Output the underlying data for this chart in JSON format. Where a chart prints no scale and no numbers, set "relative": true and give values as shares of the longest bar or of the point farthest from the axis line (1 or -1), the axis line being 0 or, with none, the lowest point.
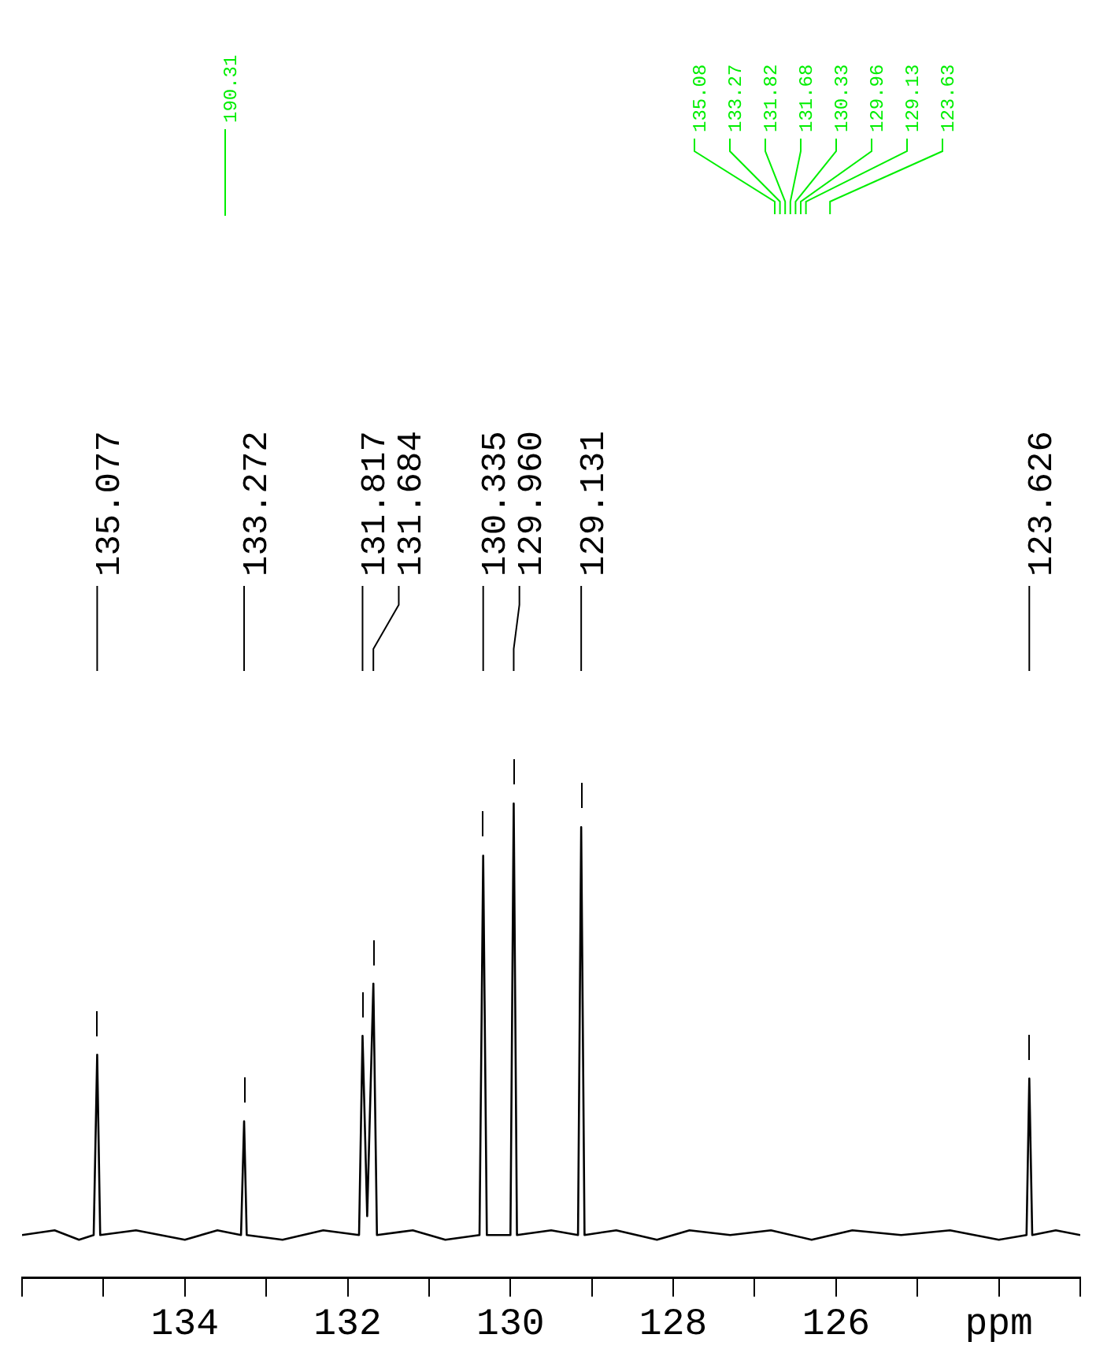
{
  "chart_data": {
    "type": "line",
    "relative": true,
    "xlim": [
      136,
      123
    ],
    "xticks": [
      {
        "value": 136,
        "label": null
      },
      {
        "value": 135,
        "label": null
      },
      134,
      {
        "value": 133,
        "label": null
      },
      132,
      {
        "value": 131,
        "label": null
      },
      130,
      {
        "value": 129,
        "label": null
      },
      128,
      {
        "value": 127,
        "label": null
      },
      126,
      {
        "value": 125,
        "label": null
      },
      {
        "value": 124,
        "label": "ppm"
      },
      {
        "value": 123,
        "label": null
      }
    ],
    "series": [
      {
        "color": "#000000",
        "x": [
          136.0,
          135.6,
          135.3,
          135.12,
          135.077,
          135.04,
          134.6,
          134.0,
          133.6,
          133.31,
          133.272,
          133.24,
          132.8,
          132.3,
          131.86,
          131.817,
          131.76,
          131.684,
          131.64,
          131.2,
          130.8,
          130.38,
          130.335,
          130.29,
          130.0,
          129.96,
          129.92,
          129.5,
          129.17,
          129.131,
          129.09,
          128.7,
          128.2,
          127.8,
          127.3,
          126.8,
          126.3,
          125.8,
          125.2,
          124.6,
          124.0,
          123.66,
          123.626,
          123.59,
          123.3,
          123.0
        ],
        "values": [
          0.09,
          0.1,
          0.08,
          0.09,
          0.47,
          0.09,
          0.1,
          0.08,
          0.1,
          0.09,
          0.33,
          0.09,
          0.08,
          0.1,
          0.09,
          0.51,
          0.13,
          0.62,
          0.09,
          0.1,
          0.08,
          0.09,
          0.89,
          0.09,
          0.09,
          1,
          0.09,
          0.1,
          0.09,
          0.95,
          0.09,
          0.1,
          0.08,
          0.1,
          0.09,
          0.1,
          0.08,
          0.1,
          0.09,
          0.1,
          0.08,
          0.09,
          0.42,
          0.09,
          0.1,
          0.09
        ]
      }
    ],
    "annotations": [
      {
        "text": "135.077",
        "x": 135.077
      },
      {
        "text": "133.272",
        "x": 133.272
      },
      {
        "text": "131.817",
        "x": 131.817
      },
      {
        "text": "131.684",
        "x": 131.684
      },
      {
        "text": "130.335",
        "x": 130.335
      },
      {
        "text": "129.960",
        "x": 129.96
      },
      {
        "text": "129.131",
        "x": 129.131
      },
      {
        "text": "123.626",
        "x": 123.626
      },
      "190.31",
      "135.08",
      "133.27",
      "131.82",
      "131.68",
      "130.33",
      "129.96",
      "129.13",
      "123.63"
    ]
  }
}
